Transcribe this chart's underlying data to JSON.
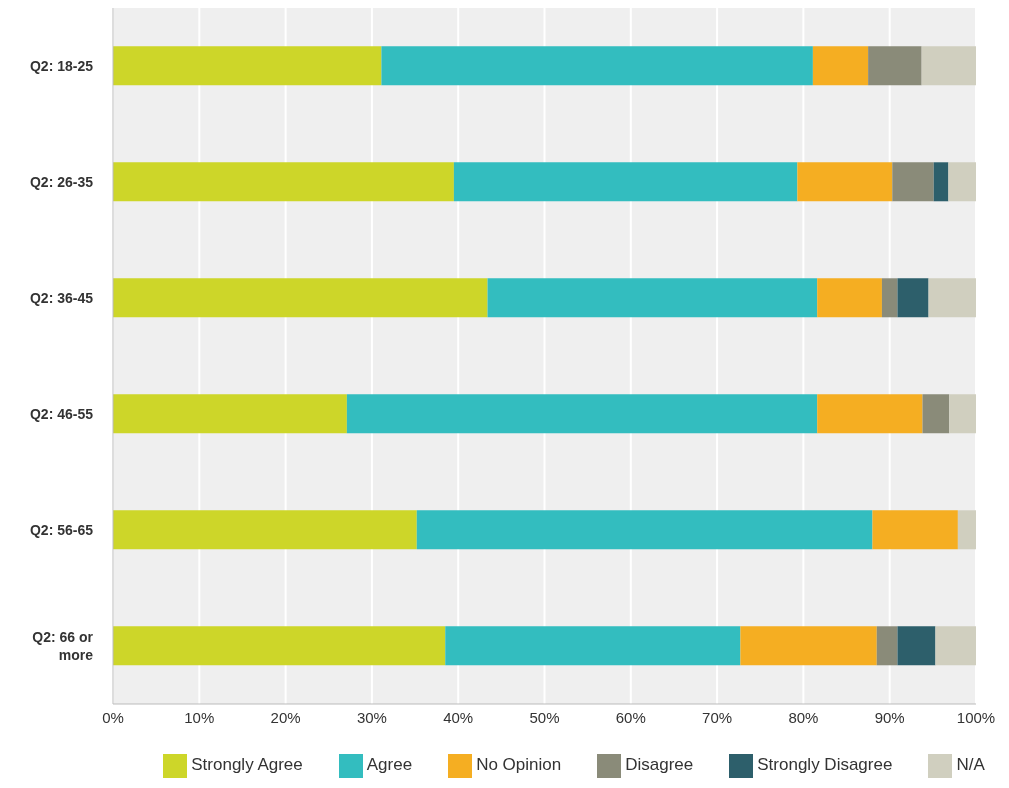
{
  "chart_data": {
    "type": "bar",
    "orientation": "horizontal",
    "stacked": true,
    "categories": [
      "Q2: 18-25",
      "Q2: 26-35",
      "Q2: 36-45",
      "Q2: 46-55",
      "Q2: 56-65",
      "Q2: 66 or more"
    ],
    "series": [
      {
        "name": "Strongly Agree",
        "color": "#cdd629",
        "values": [
          31.1,
          39.5,
          43.4,
          27.1,
          35.2,
          38.5
        ]
      },
      {
        "name": "Agree",
        "color": "#33bdbf",
        "values": [
          50.0,
          39.8,
          38.2,
          54.5,
          52.8,
          34.2
        ]
      },
      {
        "name": "No Opinion",
        "color": "#f5ae22",
        "values": [
          6.4,
          11.0,
          7.5,
          12.2,
          9.9,
          15.8
        ]
      },
      {
        "name": "Disagree",
        "color": "#8a8b79",
        "values": [
          6.2,
          4.8,
          1.8,
          3.1,
          0,
          2.4
        ]
      },
      {
        "name": "Strongly Disagree",
        "color": "#2d5f6b",
        "values": [
          0,
          1.7,
          3.6,
          0,
          0,
          4.4
        ]
      },
      {
        "name": "N/A",
        "color": "#d0cfbf",
        "values": [
          6.3,
          3.2,
          5.5,
          3.1,
          2.1,
          4.7
        ]
      }
    ],
    "xlim": [
      0,
      100
    ],
    "xticks": [
      {
        "value": 0,
        "label": "0%"
      },
      {
        "value": 10,
        "label": "10%"
      },
      {
        "value": 20,
        "label": "20%"
      },
      {
        "value": 30,
        "label": "30%"
      },
      {
        "value": 40,
        "label": "40%"
      },
      {
        "value": 50,
        "label": "50%"
      },
      {
        "value": 60,
        "label": "60%"
      },
      {
        "value": 70,
        "label": "70%"
      },
      {
        "value": 80,
        "label": "80%"
      },
      {
        "value": 90,
        "label": "90%"
      },
      {
        "value": 100,
        "label": "100%"
      }
    ],
    "grid": "x",
    "legend": "bottom"
  }
}
